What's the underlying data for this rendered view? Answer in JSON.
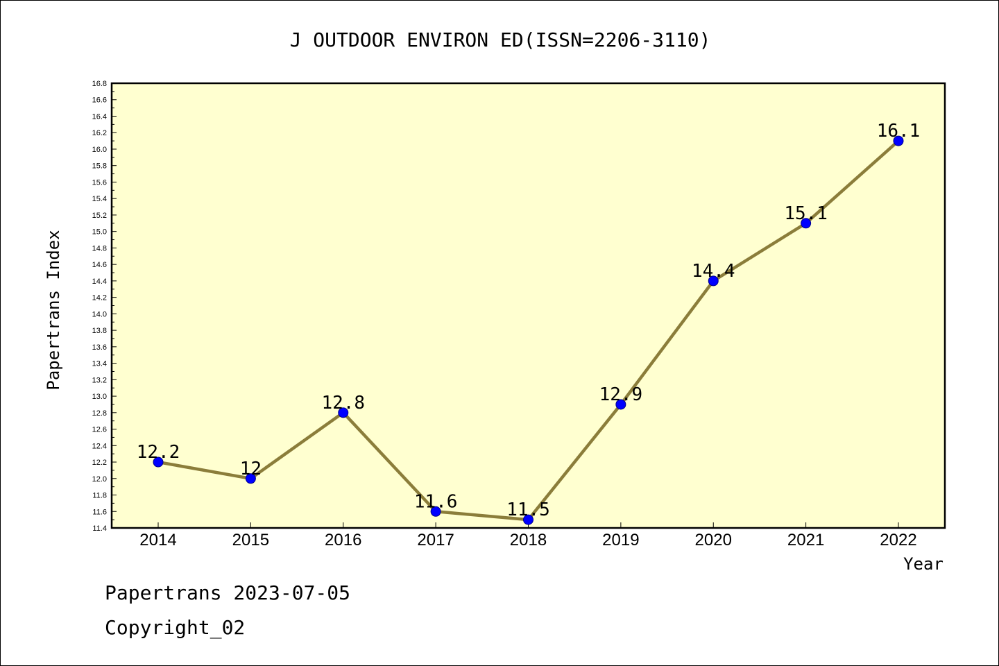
{
  "footer": {
    "line1": "Papertrans 2023-07-05",
    "line2": "Copyright_02"
  },
  "colors": {
    "plot_background": "#ffffd0",
    "line": "#8b7d3a",
    "marker": "#0000ff",
    "marker_edge": "#00008b"
  },
  "chart_data": {
    "type": "line",
    "title": "J OUTDOOR ENVIRON ED(ISSN=2206-3110)",
    "xlabel": "Year",
    "ylabel": "Papertrans Index",
    "categories": [
      "2014",
      "2015",
      "2016",
      "2017",
      "2018",
      "2019",
      "2020",
      "2021",
      "2022"
    ],
    "series": [
      {
        "values": [
          12.2,
          12,
          12.8,
          11.6,
          11.5,
          12.9,
          14.4,
          15.1,
          16.1
        ],
        "labels": [
          "12.2",
          "12",
          "12.8",
          "11.6",
          "11.5",
          "12.9",
          "14.4",
          "15.1",
          "16.1"
        ]
      }
    ],
    "ylim": [
      11.4,
      16.8
    ],
    "yticks": [
      "11.4",
      "11.6",
      "11.8",
      "12.0",
      "12.2",
      "12.4",
      "12.6",
      "12.8",
      "13.0",
      "13.2",
      "13.4",
      "13.6",
      "13.8",
      "14.0",
      "14.2",
      "14.4",
      "14.6",
      "14.8",
      "15.0",
      "15.2",
      "15.4",
      "15.6",
      "15.8",
      "16.0",
      "16.2",
      "16.4",
      "16.6",
      "16.8"
    ],
    "grid": false,
    "legend": "none"
  }
}
